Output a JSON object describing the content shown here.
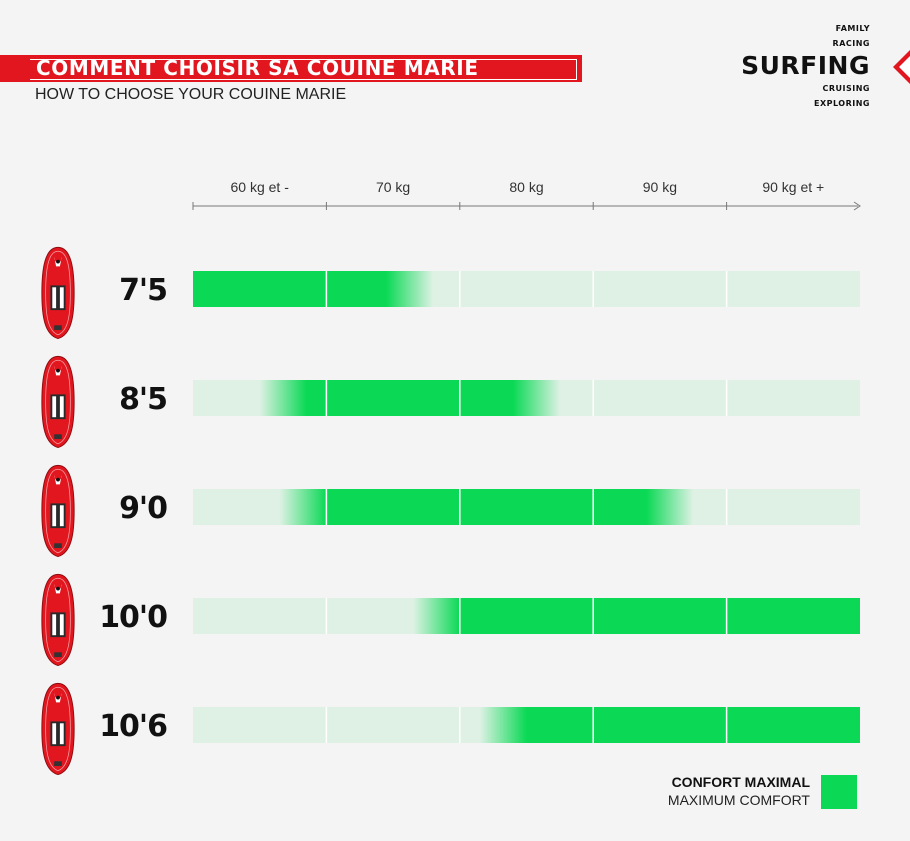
{
  "header": {
    "title": "COMMENT CHOISIR SA COUINE MARIE",
    "subtitle": "HOW TO CHOOSE YOUR COUINE MARIE"
  },
  "nav": {
    "items_above": [
      "FAMILY",
      "RACING"
    ],
    "active": "SURFING",
    "items_below": [
      "CRUISING",
      "EXPLORING"
    ]
  },
  "legend": {
    "label_fr": "CONFORT MAXIMAL",
    "label_en": "MAXIMUM COMFORT"
  },
  "colors": {
    "brand_red": "#e1161e",
    "comfort_green": "#0bd955",
    "track_green": "#def1e4"
  },
  "icons": {
    "board": "red-inflatable-paddle-board-icon"
  },
  "chart_data": {
    "type": "heatmap",
    "x_categories": [
      "60 kg et -",
      "70 kg",
      "80 kg",
      "90 kg",
      "90 kg et +"
    ],
    "y_categories": [
      "7'5",
      "8'5",
      "9'0",
      "10'0",
      "10'6"
    ],
    "series": [
      {
        "name": "7'5",
        "values": [
          1,
          0.8,
          0,
          0,
          0
        ]
      },
      {
        "name": "8'5",
        "values": [
          0.5,
          1,
          0.75,
          0,
          0
        ]
      },
      {
        "name": "9'0",
        "values": [
          0.35,
          1,
          1,
          0.75,
          0
        ]
      },
      {
        "name": "10'0",
        "values": [
          0,
          0.35,
          1,
          1,
          1
        ]
      },
      {
        "name": "10'6",
        "values": [
          0,
          0,
          0.85,
          1,
          1
        ]
      }
    ],
    "legend_position": "bottom-right",
    "grid": true
  }
}
